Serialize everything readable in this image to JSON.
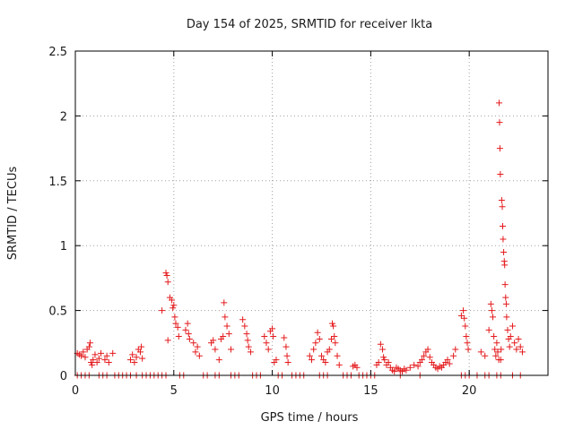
{
  "chart_data": {
    "type": "scatter",
    "title": "Day 154 of 2025, SRMTID for receiver lkta",
    "xlabel": "GPS time / hours",
    "ylabel": "SRMTID / TECUs",
    "xlim": [
      0,
      24
    ],
    "ylim": [
      0,
      2.5
    ],
    "xticks": [
      0,
      5,
      10,
      15,
      20
    ],
    "xtick_labels": [
      "0",
      "5",
      "10",
      "15",
      "20"
    ],
    "yticks": [
      0,
      0.5,
      1,
      1.5,
      2,
      2.5
    ],
    "ytick_labels": [
      "0",
      "0.5",
      "1",
      "1.5",
      "2",
      "2.5"
    ],
    "grid": true,
    "marker": "+",
    "color": "#e41a1c",
    "series": [
      {
        "name": "SRMTID",
        "points": [
          [
            0.1,
            0.17
          ],
          [
            0.2,
            0.16
          ],
          [
            0.3,
            0.15
          ],
          [
            0.4,
            0.18
          ],
          [
            0.5,
            0.14
          ],
          [
            0.6,
            0.2
          ],
          [
            0.7,
            0.22
          ],
          [
            0.75,
            0.25
          ],
          [
            0.8,
            0.1
          ],
          [
            0.85,
            0.08
          ],
          [
            0.9,
            0.12
          ],
          [
            1.0,
            0.16
          ],
          [
            1.1,
            0.1
          ],
          [
            1.2,
            0.13
          ],
          [
            1.3,
            0.17
          ],
          [
            1.5,
            0.12
          ],
          [
            1.6,
            0.15
          ],
          [
            1.7,
            0.1
          ],
          [
            1.9,
            0.17
          ],
          [
            2.8,
            0.12
          ],
          [
            2.9,
            0.16
          ],
          [
            3.0,
            0.1
          ],
          [
            3.1,
            0.14
          ],
          [
            3.2,
            0.2
          ],
          [
            3.3,
            0.18
          ],
          [
            3.35,
            0.22
          ],
          [
            3.4,
            0.13
          ],
          [
            4.4,
            0.5
          ],
          [
            4.6,
            0.79
          ],
          [
            4.65,
            0.77
          ],
          [
            4.7,
            0.72
          ],
          [
            4.7,
            0.27
          ],
          [
            4.8,
            0.6
          ],
          [
            4.9,
            0.58
          ],
          [
            4.95,
            0.52
          ],
          [
            5.0,
            0.54
          ],
          [
            5.05,
            0.45
          ],
          [
            5.1,
            0.4
          ],
          [
            5.2,
            0.37
          ],
          [
            5.25,
            0.3
          ],
          [
            5.6,
            0.35
          ],
          [
            5.7,
            0.4
          ],
          [
            5.75,
            0.32
          ],
          [
            5.8,
            0.28
          ],
          [
            6.0,
            0.25
          ],
          [
            6.1,
            0.18
          ],
          [
            6.2,
            0.22
          ],
          [
            6.3,
            0.15
          ],
          [
            6.9,
            0.25
          ],
          [
            7.0,
            0.27
          ],
          [
            7.1,
            0.2
          ],
          [
            7.3,
            0.12
          ],
          [
            7.4,
            0.28
          ],
          [
            7.5,
            0.3
          ],
          [
            7.55,
            0.56
          ],
          [
            7.6,
            0.45
          ],
          [
            7.7,
            0.38
          ],
          [
            7.8,
            0.32
          ],
          [
            7.9,
            0.2
          ],
          [
            8.5,
            0.43
          ],
          [
            8.6,
            0.38
          ],
          [
            8.7,
            0.32
          ],
          [
            8.75,
            0.27
          ],
          [
            8.8,
            0.22
          ],
          [
            8.9,
            0.18
          ],
          [
            9.6,
            0.3
          ],
          [
            9.7,
            0.25
          ],
          [
            9.8,
            0.2
          ],
          [
            9.9,
            0.34
          ],
          [
            10.0,
            0.36
          ],
          [
            10.05,
            0.3
          ],
          [
            10.1,
            0.1
          ],
          [
            10.2,
            0.12
          ],
          [
            10.6,
            0.29
          ],
          [
            10.7,
            0.22
          ],
          [
            10.75,
            0.15
          ],
          [
            10.8,
            0.1
          ],
          [
            11.9,
            0.15
          ],
          [
            12.0,
            0.12
          ],
          [
            12.1,
            0.2
          ],
          [
            12.2,
            0.25
          ],
          [
            12.3,
            0.33
          ],
          [
            12.4,
            0.28
          ],
          [
            12.5,
            0.15
          ],
          [
            12.6,
            0.12
          ],
          [
            12.7,
            0.1
          ],
          [
            12.8,
            0.18
          ],
          [
            12.9,
            0.2
          ],
          [
            13.0,
            0.28
          ],
          [
            13.05,
            0.4
          ],
          [
            13.1,
            0.38
          ],
          [
            13.15,
            0.3
          ],
          [
            13.2,
            0.25
          ],
          [
            13.3,
            0.15
          ],
          [
            13.4,
            0.08
          ],
          [
            14.1,
            0.07
          ],
          [
            14.2,
            0.08
          ],
          [
            14.3,
            0.06
          ],
          [
            15.3,
            0.08
          ],
          [
            15.4,
            0.1
          ],
          [
            15.5,
            0.24
          ],
          [
            15.6,
            0.2
          ],
          [
            15.65,
            0.14
          ],
          [
            15.7,
            0.12
          ],
          [
            15.8,
            0.08
          ],
          [
            15.9,
            0.1
          ],
          [
            16.0,
            0.06
          ],
          [
            16.1,
            0.04
          ],
          [
            16.2,
            0.03
          ],
          [
            16.3,
            0.06
          ],
          [
            16.4,
            0.05
          ],
          [
            16.5,
            0.04
          ],
          [
            16.6,
            0.03
          ],
          [
            16.7,
            0.05
          ],
          [
            16.8,
            0.04
          ],
          [
            17.0,
            0.06
          ],
          [
            17.2,
            0.08
          ],
          [
            17.4,
            0.07
          ],
          [
            17.5,
            0.1
          ],
          [
            17.6,
            0.12
          ],
          [
            17.7,
            0.15
          ],
          [
            17.8,
            0.18
          ],
          [
            17.9,
            0.2
          ],
          [
            18.0,
            0.14
          ],
          [
            18.1,
            0.1
          ],
          [
            18.2,
            0.08
          ],
          [
            18.3,
            0.06
          ],
          [
            18.4,
            0.05
          ],
          [
            18.5,
            0.07
          ],
          [
            18.6,
            0.06
          ],
          [
            18.7,
            0.08
          ],
          [
            18.8,
            0.1
          ],
          [
            18.9,
            0.12
          ],
          [
            19.0,
            0.09
          ],
          [
            19.2,
            0.15
          ],
          [
            19.3,
            0.2
          ],
          [
            19.6,
            0.46
          ],
          [
            19.7,
            0.5
          ],
          [
            19.75,
            0.44
          ],
          [
            19.8,
            0.38
          ],
          [
            19.85,
            0.3
          ],
          [
            19.9,
            0.25
          ],
          [
            19.95,
            0.2
          ],
          [
            20.6,
            0.18
          ],
          [
            20.8,
            0.15
          ],
          [
            21.0,
            0.35
          ],
          [
            21.1,
            0.55
          ],
          [
            21.15,
            0.5
          ],
          [
            21.2,
            0.45
          ],
          [
            21.25,
            0.3
          ],
          [
            21.3,
            0.2
          ],
          [
            21.35,
            0.15
          ],
          [
            21.4,
            0.25
          ],
          [
            21.45,
            0.18
          ],
          [
            21.5,
            0.12
          ],
          [
            21.52,
            2.1
          ],
          [
            21.54,
            1.95
          ],
          [
            21.56,
            1.75
          ],
          [
            21.58,
            1.55
          ],
          [
            21.6,
            0.12
          ],
          [
            21.62,
            0.2
          ],
          [
            21.65,
            1.35
          ],
          [
            21.68,
            1.3
          ],
          [
            21.7,
            1.15
          ],
          [
            21.72,
            1.05
          ],
          [
            21.75,
            0.95
          ],
          [
            21.78,
            0.88
          ],
          [
            21.8,
            0.85
          ],
          [
            21.82,
            0.7
          ],
          [
            21.85,
            0.6
          ],
          [
            21.88,
            0.55
          ],
          [
            21.9,
            0.45
          ],
          [
            21.95,
            0.35
          ],
          [
            22.0,
            0.28
          ],
          [
            22.05,
            0.22
          ],
          [
            22.1,
            0.3
          ],
          [
            22.2,
            0.38
          ],
          [
            22.3,
            0.25
          ],
          [
            22.4,
            0.2
          ],
          [
            22.5,
            0.28
          ],
          [
            22.6,
            0.22
          ],
          [
            22.7,
            0.18
          ],
          [
            0.1,
            0.0
          ],
          [
            0.3,
            0.0
          ],
          [
            0.5,
            0.0
          ],
          [
            0.7,
            0.0
          ],
          [
            1.2,
            0.0
          ],
          [
            1.4,
            0.0
          ],
          [
            1.6,
            0.0
          ],
          [
            2.0,
            0.0
          ],
          [
            2.2,
            0.0
          ],
          [
            2.4,
            0.0
          ],
          [
            2.6,
            0.0
          ],
          [
            2.8,
            0.0
          ],
          [
            3.1,
            0.0
          ],
          [
            3.4,
            0.0
          ],
          [
            3.6,
            0.0
          ],
          [
            3.8,
            0.0
          ],
          [
            4.0,
            0.0
          ],
          [
            4.2,
            0.0
          ],
          [
            4.4,
            0.0
          ],
          [
            4.6,
            0.0
          ],
          [
            5.3,
            0.0
          ],
          [
            5.5,
            0.0
          ],
          [
            6.5,
            0.0
          ],
          [
            6.7,
            0.0
          ],
          [
            7.1,
            0.0
          ],
          [
            7.3,
            0.0
          ],
          [
            7.9,
            0.0
          ],
          [
            8.1,
            0.0
          ],
          [
            8.3,
            0.0
          ],
          [
            9.0,
            0.0
          ],
          [
            9.2,
            0.0
          ],
          [
            9.4,
            0.0
          ],
          [
            10.3,
            0.0
          ],
          [
            10.5,
            0.0
          ],
          [
            11.0,
            0.0
          ],
          [
            11.2,
            0.0
          ],
          [
            11.4,
            0.0
          ],
          [
            11.6,
            0.0
          ],
          [
            12.4,
            0.0
          ],
          [
            12.6,
            0.0
          ],
          [
            12.8,
            0.0
          ],
          [
            13.6,
            0.0
          ],
          [
            13.8,
            0.0
          ],
          [
            14.0,
            0.0
          ],
          [
            14.4,
            0.0
          ],
          [
            14.6,
            0.0
          ],
          [
            14.8,
            0.0
          ],
          [
            15.0,
            0.0
          ],
          [
            15.2,
            0.0
          ],
          [
            16.5,
            0.0
          ],
          [
            17.5,
            0.0
          ],
          [
            19.6,
            0.0
          ],
          [
            19.8,
            0.0
          ],
          [
            20.0,
            0.0
          ],
          [
            20.4,
            0.0
          ],
          [
            20.8,
            0.0
          ],
          [
            21.0,
            0.0
          ],
          [
            21.4,
            0.0
          ],
          [
            21.6,
            0.0
          ],
          [
            22.2,
            0.0
          ],
          [
            22.6,
            0.0
          ]
        ]
      }
    ]
  }
}
